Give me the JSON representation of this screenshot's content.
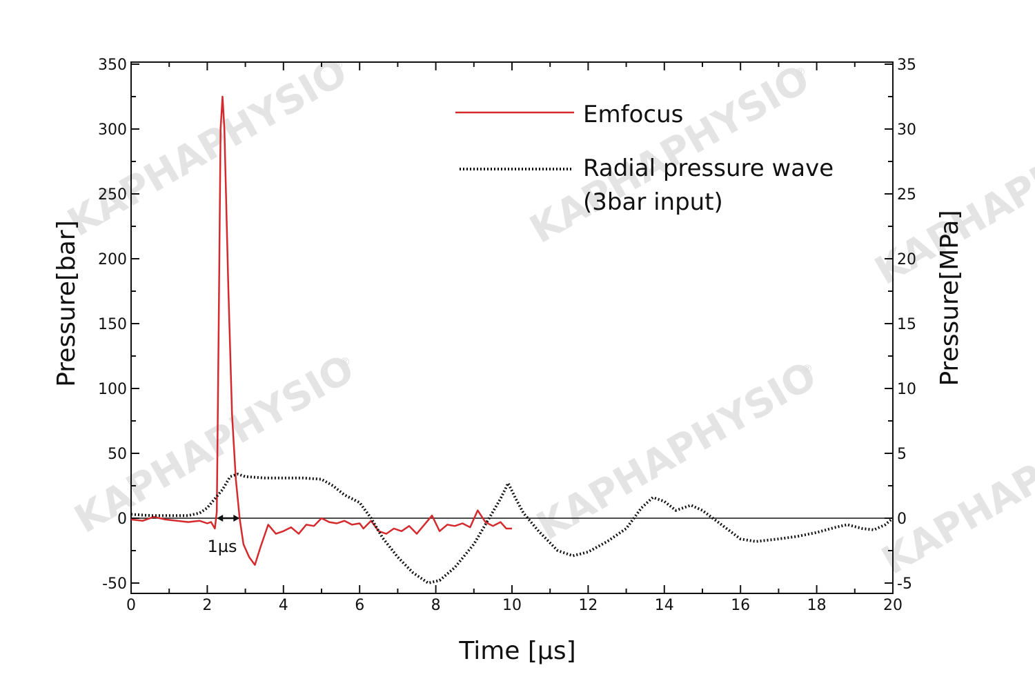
{
  "watermark": {
    "text": "KAPHAPHYSIO",
    "mark": "®"
  },
  "chart_data": {
    "type": "line",
    "title": "",
    "xlabel": "Time [µs]",
    "ylabel_left": "Pressure[bar]",
    "ylabel_right": "Pressure[MPa]",
    "xlim": [
      0,
      20
    ],
    "ylim_left": [
      -55,
      350
    ],
    "ylim_right": [
      -5.5,
      35
    ],
    "x_ticks": [
      0,
      2,
      4,
      6,
      8,
      10,
      12,
      14,
      16,
      18,
      20
    ],
    "y_ticks_left": [
      -50,
      0,
      50,
      100,
      150,
      200,
      250,
      300,
      350
    ],
    "y_ticks_right": [
      -5,
      0,
      5,
      10,
      15,
      20,
      25,
      30,
      35
    ],
    "grid": false,
    "legend_position": "top-right",
    "annotation": {
      "text": "1µs",
      "x_start": 2.25,
      "x_end": 2.85,
      "y": 0
    },
    "series": [
      {
        "name": "Emfocus",
        "color": "#d42a2e",
        "style": "solid",
        "points": [
          [
            0,
            -1
          ],
          [
            0.3,
            -2
          ],
          [
            0.6,
            1
          ],
          [
            0.9,
            -1
          ],
          [
            1.2,
            -2
          ],
          [
            1.5,
            -3
          ],
          [
            1.8,
            -2
          ],
          [
            2.0,
            -4
          ],
          [
            2.1,
            -3
          ],
          [
            2.2,
            -8
          ],
          [
            2.25,
            5
          ],
          [
            2.3,
            150
          ],
          [
            2.35,
            300
          ],
          [
            2.4,
            325
          ],
          [
            2.45,
            300
          ],
          [
            2.55,
            180
          ],
          [
            2.65,
            80
          ],
          [
            2.75,
            30
          ],
          [
            2.85,
            0
          ],
          [
            2.95,
            -20
          ],
          [
            3.1,
            -30
          ],
          [
            3.25,
            -36
          ],
          [
            3.4,
            -22
          ],
          [
            3.6,
            -5
          ],
          [
            3.8,
            -12
          ],
          [
            4.0,
            -10
          ],
          [
            4.2,
            -7
          ],
          [
            4.4,
            -12
          ],
          [
            4.6,
            -5
          ],
          [
            4.8,
            -6
          ],
          [
            5.0,
            0
          ],
          [
            5.2,
            -3
          ],
          [
            5.4,
            -4
          ],
          [
            5.6,
            -2
          ],
          [
            5.8,
            -5
          ],
          [
            6.0,
            -4
          ],
          [
            6.1,
            -8
          ],
          [
            6.3,
            -2
          ],
          [
            6.5,
            -10
          ],
          [
            6.7,
            -12
          ],
          [
            6.9,
            -8
          ],
          [
            7.1,
            -10
          ],
          [
            7.3,
            -6
          ],
          [
            7.5,
            -12
          ],
          [
            7.7,
            -5
          ],
          [
            7.9,
            2
          ],
          [
            8.1,
            -10
          ],
          [
            8.3,
            -5
          ],
          [
            8.5,
            -6
          ],
          [
            8.7,
            -4
          ],
          [
            8.9,
            -7
          ],
          [
            9.1,
            6
          ],
          [
            9.3,
            -3
          ],
          [
            9.5,
            -6
          ],
          [
            9.7,
            -3
          ],
          [
            9.85,
            -8
          ],
          [
            10.0,
            -8
          ]
        ]
      },
      {
        "name": "Radial pressure wave (3bar input)",
        "legend_lines": [
          "Radial pressure wave",
          "(3bar input)"
        ],
        "color": "#111111",
        "style": "dotted",
        "points": [
          [
            0,
            3
          ],
          [
            0.5,
            2
          ],
          [
            1.0,
            2
          ],
          [
            1.5,
            2
          ],
          [
            1.8,
            4
          ],
          [
            2.0,
            8
          ],
          [
            2.2,
            15
          ],
          [
            2.4,
            22
          ],
          [
            2.6,
            32
          ],
          [
            2.8,
            34
          ],
          [
            3.0,
            32
          ],
          [
            3.5,
            31
          ],
          [
            4.0,
            31
          ],
          [
            4.5,
            31
          ],
          [
            5.0,
            30
          ],
          [
            5.3,
            25
          ],
          [
            5.6,
            18
          ],
          [
            6.0,
            12
          ],
          [
            6.3,
            0
          ],
          [
            6.6,
            -15
          ],
          [
            7.0,
            -30
          ],
          [
            7.4,
            -42
          ],
          [
            7.8,
            -50
          ],
          [
            8.1,
            -48
          ],
          [
            8.5,
            -38
          ],
          [
            9.0,
            -20
          ],
          [
            9.4,
            0
          ],
          [
            9.7,
            15
          ],
          [
            9.9,
            27
          ],
          [
            10.1,
            15
          ],
          [
            10.3,
            4
          ],
          [
            10.7,
            -10
          ],
          [
            11.2,
            -25
          ],
          [
            11.6,
            -29
          ],
          [
            12.0,
            -26
          ],
          [
            12.5,
            -18
          ],
          [
            13.0,
            -8
          ],
          [
            13.4,
            8
          ],
          [
            13.7,
            16
          ],
          [
            14.0,
            13
          ],
          [
            14.3,
            6
          ],
          [
            14.7,
            10
          ],
          [
            15.0,
            6
          ],
          [
            15.5,
            -5
          ],
          [
            16.0,
            -16
          ],
          [
            16.4,
            -18
          ],
          [
            17.0,
            -16
          ],
          [
            17.5,
            -14
          ],
          [
            18.0,
            -11
          ],
          [
            18.5,
            -7
          ],
          [
            18.8,
            -5
          ],
          [
            19.2,
            -8
          ],
          [
            19.5,
            -9
          ],
          [
            19.8,
            -5
          ],
          [
            20.0,
            0
          ]
        ]
      }
    ]
  }
}
